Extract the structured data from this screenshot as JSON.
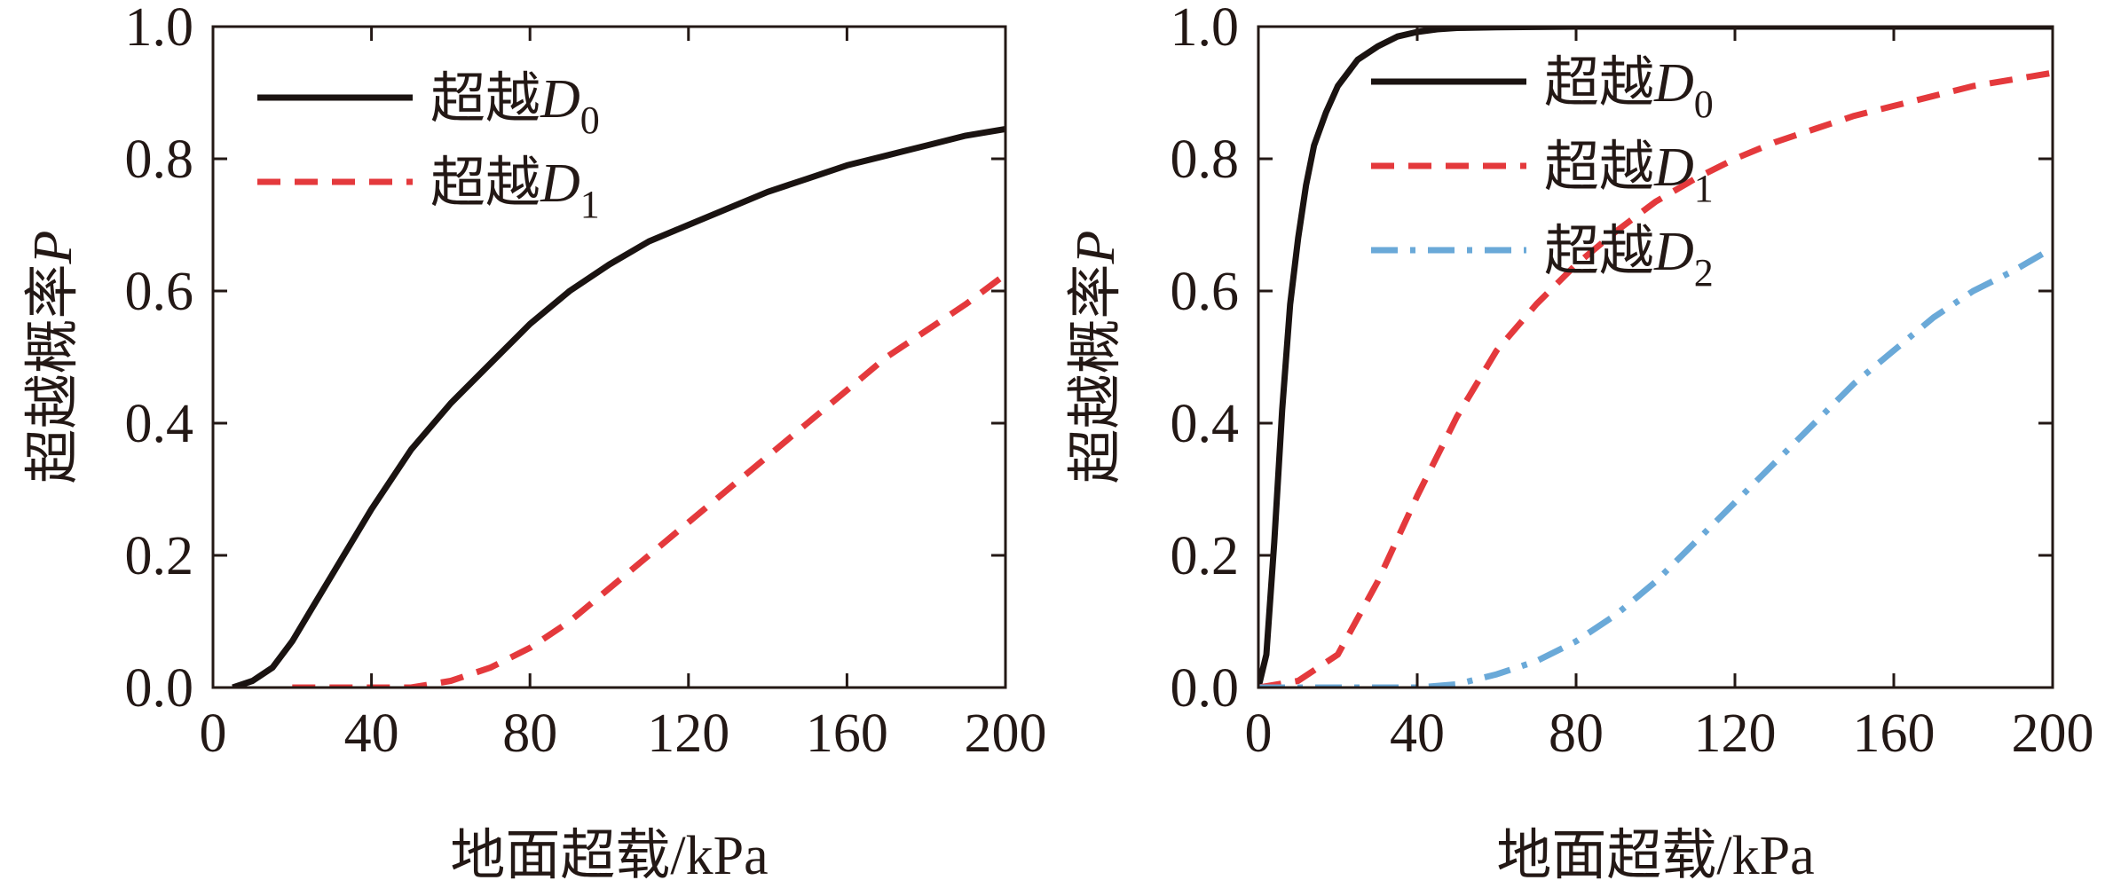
{
  "colors": {
    "d0": "#1a1311",
    "d1": "#e4393c",
    "d2": "#6aa9d8",
    "axis": "#231815"
  },
  "chart_data": [
    {
      "type": "line",
      "xlabel": "地面超载/kPa",
      "ylabel_text": "超越概率",
      "ylabel_var": "P",
      "xlim": [
        0,
        200
      ],
      "ylim": [
        0,
        1.0
      ],
      "x_ticks": [
        "0",
        "40",
        "80",
        "120",
        "160",
        "200"
      ],
      "y_ticks": [
        "0.0",
        "0.2",
        "0.4",
        "0.6",
        "0.8",
        "1.0"
      ],
      "grid": false,
      "legend_position": "top-left",
      "series": [
        {
          "name_prefix": "超越",
          "name_var": "D",
          "name_sub": "0",
          "style": "solid",
          "color_key": "d0",
          "x": [
            5,
            10,
            15,
            20,
            25,
            30,
            40,
            50,
            60,
            70,
            80,
            90,
            100,
            110,
            120,
            130,
            140,
            150,
            160,
            170,
            180,
            190,
            200
          ],
          "y": [
            0.0,
            0.01,
            0.03,
            0.07,
            0.12,
            0.17,
            0.27,
            0.36,
            0.43,
            0.49,
            0.55,
            0.6,
            0.64,
            0.675,
            0.7,
            0.725,
            0.75,
            0.77,
            0.79,
            0.805,
            0.82,
            0.835,
            0.845
          ]
        },
        {
          "name_prefix": "超越",
          "name_var": "D",
          "name_sub": "1",
          "style": "dashed",
          "color_key": "d1",
          "x": [
            20,
            30,
            40,
            50,
            60,
            70,
            80,
            90,
            100,
            110,
            120,
            130,
            140,
            150,
            160,
            170,
            180,
            190,
            200
          ],
          "y": [
            0.0,
            0.0,
            0.0,
            0.0,
            0.01,
            0.03,
            0.06,
            0.1,
            0.15,
            0.2,
            0.25,
            0.3,
            0.35,
            0.4,
            0.45,
            0.5,
            0.54,
            0.58,
            0.625
          ]
        }
      ]
    },
    {
      "type": "line",
      "xlabel": "地面超载/kPa",
      "ylabel_text": "超越概率",
      "ylabel_var": "P",
      "xlim": [
        0,
        200
      ],
      "ylim": [
        0,
        1.0
      ],
      "x_ticks": [
        "0",
        "40",
        "80",
        "120",
        "160",
        "200"
      ],
      "y_ticks": [
        "0.0",
        "0.2",
        "0.4",
        "0.6",
        "0.8",
        "1.0"
      ],
      "grid": false,
      "legend_position": "top-left",
      "series": [
        {
          "name_prefix": "超越",
          "name_var": "D",
          "name_sub": "0",
          "style": "solid",
          "color_key": "d0",
          "x": [
            0,
            2,
            4,
            6,
            8,
            10,
            12,
            14,
            17,
            20,
            25,
            30,
            35,
            40,
            45,
            50,
            60,
            80,
            100,
            150,
            200
          ],
          "y": [
            0.0,
            0.05,
            0.22,
            0.42,
            0.58,
            0.68,
            0.76,
            0.82,
            0.87,
            0.91,
            0.95,
            0.97,
            0.985,
            0.992,
            0.996,
            0.998,
            0.999,
            1.0,
            1.0,
            1.0,
            1.0
          ]
        },
        {
          "name_prefix": "超越",
          "name_var": "D",
          "name_sub": "1",
          "style": "dashed",
          "color_key": "d1",
          "x": [
            0,
            10,
            20,
            30,
            40,
            50,
            60,
            70,
            80,
            90,
            100,
            110,
            120,
            130,
            140,
            150,
            160,
            170,
            180,
            190,
            200
          ],
          "y": [
            0.0,
            0.01,
            0.05,
            0.16,
            0.29,
            0.41,
            0.51,
            0.58,
            0.64,
            0.69,
            0.735,
            0.77,
            0.8,
            0.825,
            0.845,
            0.865,
            0.88,
            0.895,
            0.91,
            0.92,
            0.93
          ]
        },
        {
          "name_prefix": "超越",
          "name_var": "D",
          "name_sub": "2",
          "style": "dashdot",
          "color_key": "d2",
          "x": [
            0,
            20,
            40,
            50,
            60,
            70,
            80,
            90,
            100,
            110,
            120,
            130,
            140,
            150,
            160,
            170,
            180,
            190,
            200
          ],
          "y": [
            0.0,
            0.0,
            0.0,
            0.005,
            0.02,
            0.04,
            0.07,
            0.11,
            0.16,
            0.22,
            0.28,
            0.34,
            0.4,
            0.46,
            0.51,
            0.56,
            0.6,
            0.63,
            0.665
          ]
        }
      ]
    }
  ]
}
